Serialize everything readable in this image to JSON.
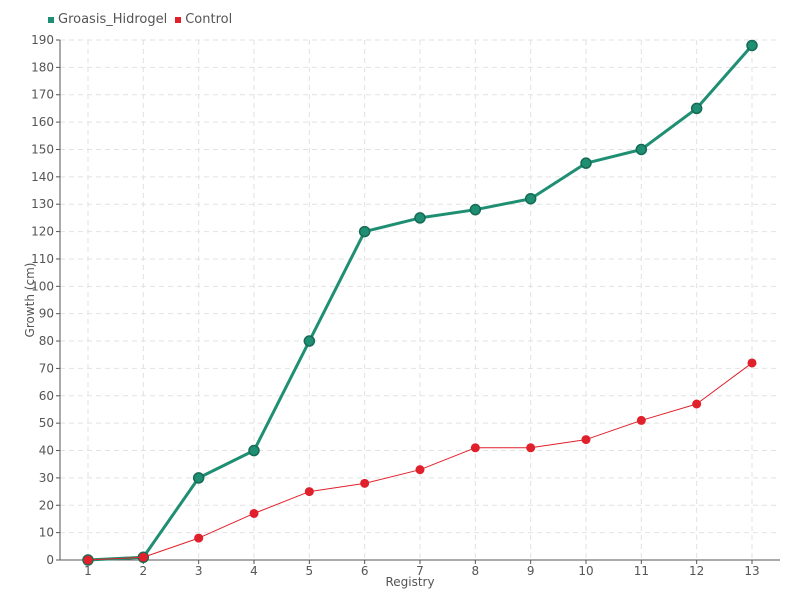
{
  "chart_data": {
    "type": "line",
    "x": [
      1,
      2,
      3,
      4,
      5,
      6,
      7,
      8,
      9,
      10,
      11,
      12,
      13
    ],
    "series": [
      {
        "name": "Groasis_Hidrogel",
        "color": "#1f8f73",
        "values": [
          0,
          1,
          30,
          40,
          80,
          120,
          125,
          128,
          132,
          145,
          150,
          165,
          188
        ]
      },
      {
        "name": "Control",
        "color": "#e0202a",
        "values": [
          0,
          1,
          8,
          17,
          25,
          28,
          33,
          41,
          41,
          44,
          51,
          57,
          72
        ]
      }
    ],
    "xlabel": "Registry",
    "ylabel": "Growth (cm)",
    "ylim": [
      0,
      190
    ],
    "ytick_step": 10,
    "grid": true,
    "legend_placement": "top-left"
  }
}
